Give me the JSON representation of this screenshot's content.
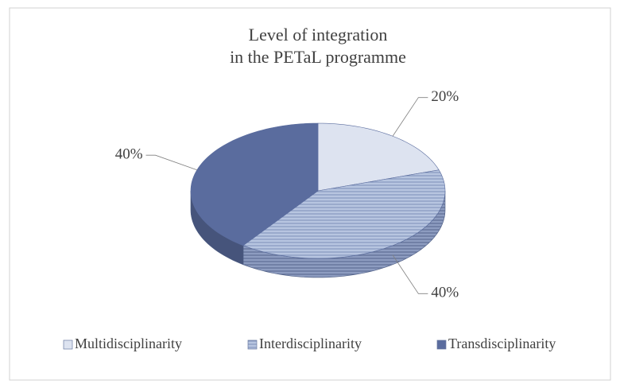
{
  "chart_data": {
    "type": "pie3d",
    "title": [
      "Level of integration",
      "in the PETaL programme"
    ],
    "categories": [
      "Multidisciplinarity",
      "Interdisciplinarity",
      "Transdisciplinarity"
    ],
    "values": [
      20,
      40,
      40
    ],
    "value_labels": [
      "20%",
      "40%",
      "40%"
    ],
    "colors": [
      "#dde3f0",
      "#a8b8d8",
      "#5a6c9e"
    ],
    "hatch": [
      false,
      true,
      false
    ],
    "legend": "bottom"
  }
}
